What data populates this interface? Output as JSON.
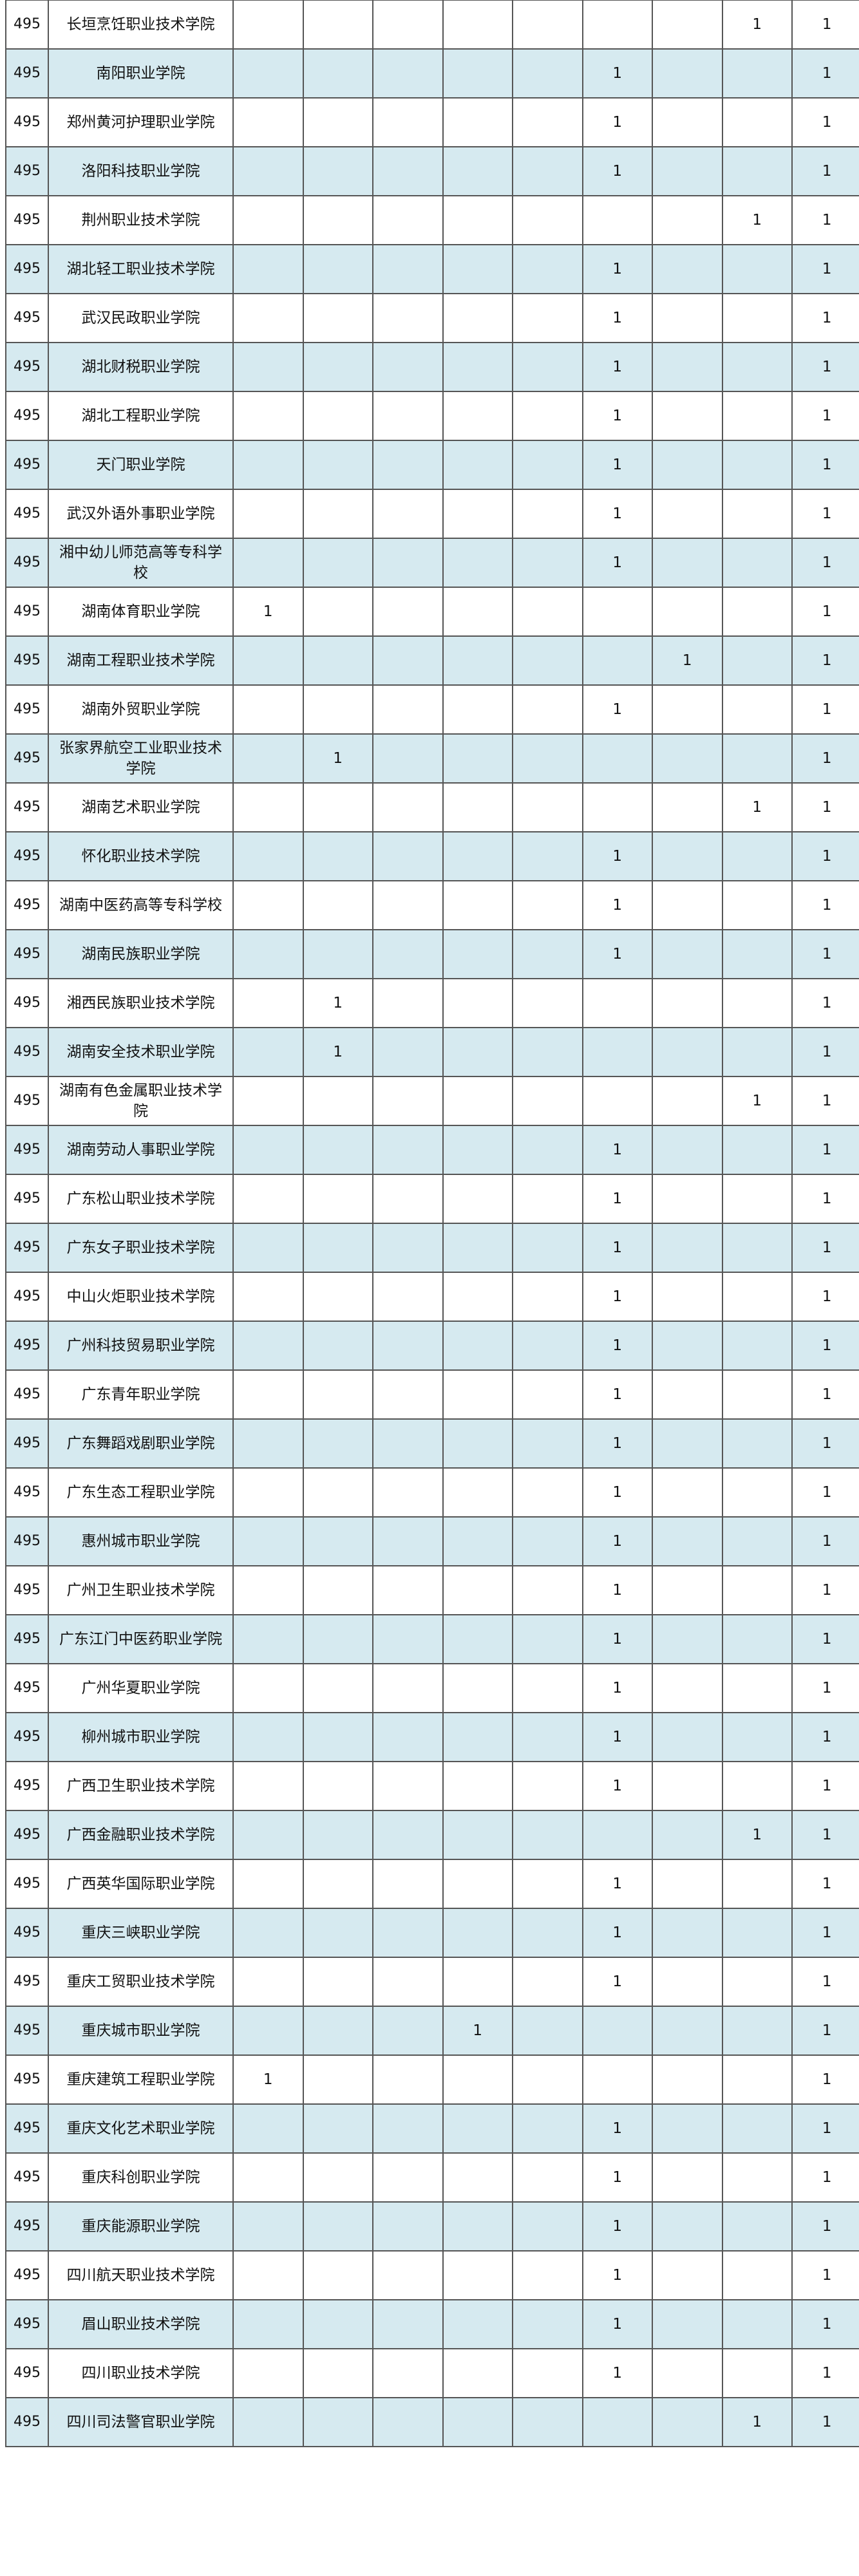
{
  "table": {
    "rows": [
      {
        "rank": "495",
        "name": "长垣烹饪职业技术学院",
        "values": [
          "",
          "",
          "",
          "",
          "",
          "",
          "",
          "1"
        ],
        "total": "1"
      },
      {
        "rank": "495",
        "name": "南阳职业学院",
        "values": [
          "",
          "",
          "",
          "",
          "",
          "1",
          "",
          ""
        ],
        "total": "1"
      },
      {
        "rank": "495",
        "name": "郑州黄河护理职业学院",
        "values": [
          "",
          "",
          "",
          "",
          "",
          "1",
          "",
          ""
        ],
        "total": "1"
      },
      {
        "rank": "495",
        "name": "洛阳科技职业学院",
        "values": [
          "",
          "",
          "",
          "",
          "",
          "1",
          "",
          ""
        ],
        "total": "1"
      },
      {
        "rank": "495",
        "name": "荆州职业技术学院",
        "values": [
          "",
          "",
          "",
          "",
          "",
          "",
          "",
          "1"
        ],
        "total": "1"
      },
      {
        "rank": "495",
        "name": "湖北轻工职业技术学院",
        "values": [
          "",
          "",
          "",
          "",
          "",
          "1",
          "",
          ""
        ],
        "total": "1"
      },
      {
        "rank": "495",
        "name": "武汉民政职业学院",
        "values": [
          "",
          "",
          "",
          "",
          "",
          "1",
          "",
          ""
        ],
        "total": "1"
      },
      {
        "rank": "495",
        "name": "湖北财税职业学院",
        "values": [
          "",
          "",
          "",
          "",
          "",
          "1",
          "",
          ""
        ],
        "total": "1"
      },
      {
        "rank": "495",
        "name": "湖北工程职业学院",
        "values": [
          "",
          "",
          "",
          "",
          "",
          "1",
          "",
          ""
        ],
        "total": "1"
      },
      {
        "rank": "495",
        "name": "天门职业学院",
        "values": [
          "",
          "",
          "",
          "",
          "",
          "1",
          "",
          ""
        ],
        "total": "1"
      },
      {
        "rank": "495",
        "name": "武汉外语外事职业学院",
        "values": [
          "",
          "",
          "",
          "",
          "",
          "1",
          "",
          ""
        ],
        "total": "1"
      },
      {
        "rank": "495",
        "name": "湘中幼儿师范高等专科学校",
        "values": [
          "",
          "",
          "",
          "",
          "",
          "1",
          "",
          ""
        ],
        "total": "1"
      },
      {
        "rank": "495",
        "name": "湖南体育职业学院",
        "values": [
          "1",
          "",
          "",
          "",
          "",
          "",
          "",
          ""
        ],
        "total": "1"
      },
      {
        "rank": "495",
        "name": "湖南工程职业技术学院",
        "values": [
          "",
          "",
          "",
          "",
          "",
          "",
          "1",
          ""
        ],
        "total": "1"
      },
      {
        "rank": "495",
        "name": "湖南外贸职业学院",
        "values": [
          "",
          "",
          "",
          "",
          "",
          "1",
          "",
          ""
        ],
        "total": "1"
      },
      {
        "rank": "495",
        "name": "张家界航空工业职业技术学院",
        "values": [
          "",
          "1",
          "",
          "",
          "",
          "",
          "",
          ""
        ],
        "total": "1"
      },
      {
        "rank": "495",
        "name": "湖南艺术职业学院",
        "values": [
          "",
          "",
          "",
          "",
          "",
          "",
          "",
          "1"
        ],
        "total": "1"
      },
      {
        "rank": "495",
        "name": "怀化职业技术学院",
        "values": [
          "",
          "",
          "",
          "",
          "",
          "1",
          "",
          ""
        ],
        "total": "1"
      },
      {
        "rank": "495",
        "name": "湖南中医药高等专科学校",
        "values": [
          "",
          "",
          "",
          "",
          "",
          "1",
          "",
          ""
        ],
        "total": "1"
      },
      {
        "rank": "495",
        "name": "湖南民族职业学院",
        "values": [
          "",
          "",
          "",
          "",
          "",
          "1",
          "",
          ""
        ],
        "total": "1"
      },
      {
        "rank": "495",
        "name": "湘西民族职业技术学院",
        "values": [
          "",
          "1",
          "",
          "",
          "",
          "",
          "",
          ""
        ],
        "total": "1"
      },
      {
        "rank": "495",
        "name": "湖南安全技术职业学院",
        "values": [
          "",
          "1",
          "",
          "",
          "",
          "",
          "",
          ""
        ],
        "total": "1"
      },
      {
        "rank": "495",
        "name": "湖南有色金属职业技术学院",
        "values": [
          "",
          "",
          "",
          "",
          "",
          "",
          "",
          "1"
        ],
        "total": "1"
      },
      {
        "rank": "495",
        "name": "湖南劳动人事职业学院",
        "values": [
          "",
          "",
          "",
          "",
          "",
          "1",
          "",
          ""
        ],
        "total": "1"
      },
      {
        "rank": "495",
        "name": "广东松山职业技术学院",
        "values": [
          "",
          "",
          "",
          "",
          "",
          "1",
          "",
          ""
        ],
        "total": "1"
      },
      {
        "rank": "495",
        "name": "广东女子职业技术学院",
        "values": [
          "",
          "",
          "",
          "",
          "",
          "1",
          "",
          ""
        ],
        "total": "1"
      },
      {
        "rank": "495",
        "name": "中山火炬职业技术学院",
        "values": [
          "",
          "",
          "",
          "",
          "",
          "1",
          "",
          ""
        ],
        "total": "1"
      },
      {
        "rank": "495",
        "name": "广州科技贸易职业学院",
        "values": [
          "",
          "",
          "",
          "",
          "",
          "1",
          "",
          ""
        ],
        "total": "1"
      },
      {
        "rank": "495",
        "name": "广东青年职业学院",
        "values": [
          "",
          "",
          "",
          "",
          "",
          "1",
          "",
          ""
        ],
        "total": "1"
      },
      {
        "rank": "495",
        "name": "广东舞蹈戏剧职业学院",
        "values": [
          "",
          "",
          "",
          "",
          "",
          "1",
          "",
          ""
        ],
        "total": "1"
      },
      {
        "rank": "495",
        "name": "广东生态工程职业学院",
        "values": [
          "",
          "",
          "",
          "",
          "",
          "1",
          "",
          ""
        ],
        "total": "1"
      },
      {
        "rank": "495",
        "name": "惠州城市职业学院",
        "values": [
          "",
          "",
          "",
          "",
          "",
          "1",
          "",
          ""
        ],
        "total": "1"
      },
      {
        "rank": "495",
        "name": "广州卫生职业技术学院",
        "values": [
          "",
          "",
          "",
          "",
          "",
          "1",
          "",
          ""
        ],
        "total": "1"
      },
      {
        "rank": "495",
        "name": "广东江门中医药职业学院",
        "values": [
          "",
          "",
          "",
          "",
          "",
          "1",
          "",
          ""
        ],
        "total": "1"
      },
      {
        "rank": "495",
        "name": "广州华夏职业学院",
        "values": [
          "",
          "",
          "",
          "",
          "",
          "1",
          "",
          ""
        ],
        "total": "1"
      },
      {
        "rank": "495",
        "name": "柳州城市职业学院",
        "values": [
          "",
          "",
          "",
          "",
          "",
          "1",
          "",
          ""
        ],
        "total": "1"
      },
      {
        "rank": "495",
        "name": "广西卫生职业技术学院",
        "values": [
          "",
          "",
          "",
          "",
          "",
          "1",
          "",
          ""
        ],
        "total": "1"
      },
      {
        "rank": "495",
        "name": "广西金融职业技术学院",
        "values": [
          "",
          "",
          "",
          "",
          "",
          "",
          "",
          "1"
        ],
        "total": "1"
      },
      {
        "rank": "495",
        "name": "广西英华国际职业学院",
        "values": [
          "",
          "",
          "",
          "",
          "",
          "1",
          "",
          ""
        ],
        "total": "1"
      },
      {
        "rank": "495",
        "name": "重庆三峡职业学院",
        "values": [
          "",
          "",
          "",
          "",
          "",
          "1",
          "",
          ""
        ],
        "total": "1"
      },
      {
        "rank": "495",
        "name": "重庆工贸职业技术学院",
        "values": [
          "",
          "",
          "",
          "",
          "",
          "1",
          "",
          ""
        ],
        "total": "1"
      },
      {
        "rank": "495",
        "name": "重庆城市职业学院",
        "values": [
          "",
          "",
          "",
          "1",
          "",
          "",
          "",
          ""
        ],
        "total": "1"
      },
      {
        "rank": "495",
        "name": "重庆建筑工程职业学院",
        "values": [
          "1",
          "",
          "",
          "",
          "",
          "",
          "",
          ""
        ],
        "total": "1"
      },
      {
        "rank": "495",
        "name": "重庆文化艺术职业学院",
        "values": [
          "",
          "",
          "",
          "",
          "",
          "1",
          "",
          ""
        ],
        "total": "1"
      },
      {
        "rank": "495",
        "name": "重庆科创职业学院",
        "values": [
          "",
          "",
          "",
          "",
          "",
          "1",
          "",
          ""
        ],
        "total": "1"
      },
      {
        "rank": "495",
        "name": "重庆能源职业学院",
        "values": [
          "",
          "",
          "",
          "",
          "",
          "1",
          "",
          ""
        ],
        "total": "1"
      },
      {
        "rank": "495",
        "name": "四川航天职业技术学院",
        "values": [
          "",
          "",
          "",
          "",
          "",
          "1",
          "",
          ""
        ],
        "total": "1"
      },
      {
        "rank": "495",
        "name": "眉山职业技术学院",
        "values": [
          "",
          "",
          "",
          "",
          "",
          "1",
          "",
          ""
        ],
        "total": "1"
      },
      {
        "rank": "495",
        "name": "四川职业技术学院",
        "values": [
          "",
          "",
          "",
          "",
          "",
          "1",
          "",
          ""
        ],
        "total": "1"
      },
      {
        "rank": "495",
        "name": "四川司法警官职业学院",
        "values": [
          "",
          "",
          "",
          "",
          "",
          "",
          "",
          "1"
        ],
        "total": "1"
      }
    ]
  },
  "colors": {
    "row_alt": "#d6eaf0",
    "row": "#ffffff",
    "border": "#555555"
  }
}
